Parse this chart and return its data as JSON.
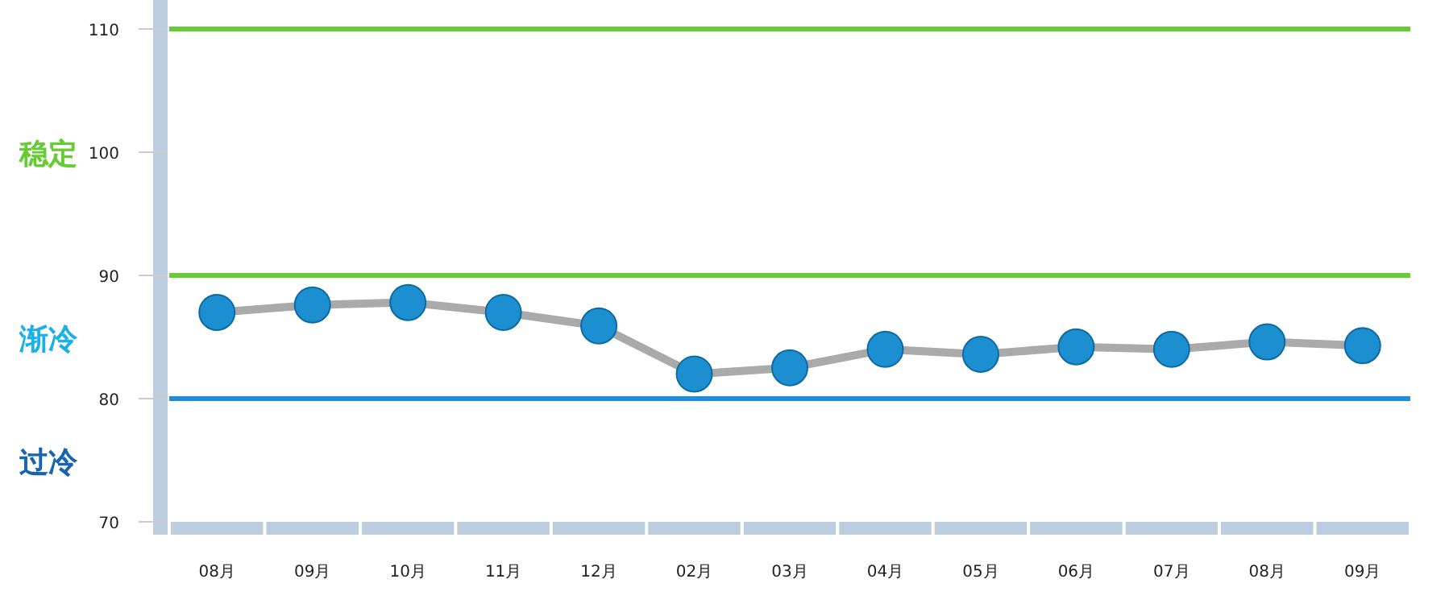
{
  "chart_data": {
    "type": "line",
    "categories": [
      "08月",
      "09月",
      "10月",
      "11月",
      "12月",
      "02月",
      "03月",
      "04月",
      "05月",
      "06月",
      "07月",
      "08月",
      "09月"
    ],
    "series": [
      {
        "color": "#1b8fd0",
        "values": [
          87.0,
          87.6,
          87.8,
          87.0,
          85.9,
          82.0,
          82.5,
          84.0,
          83.6,
          84.2,
          84.0,
          84.6,
          84.3
        ]
      }
    ],
    "ylim": [
      70,
      110
    ],
    "yticks": [
      70,
      80,
      90,
      100,
      110
    ],
    "ref_lines": [
      {
        "axis": "y",
        "value": 110,
        "color": "#66cc33"
      },
      {
        "axis": "y",
        "value": 90,
        "color": "#66cc33"
      },
      {
        "axis": "y",
        "value": 80,
        "color": "#1e8fd6"
      }
    ],
    "annotations": [
      "稳定",
      "渐冷",
      "过冷"
    ],
    "marker": "circle",
    "grid": false
  }
}
